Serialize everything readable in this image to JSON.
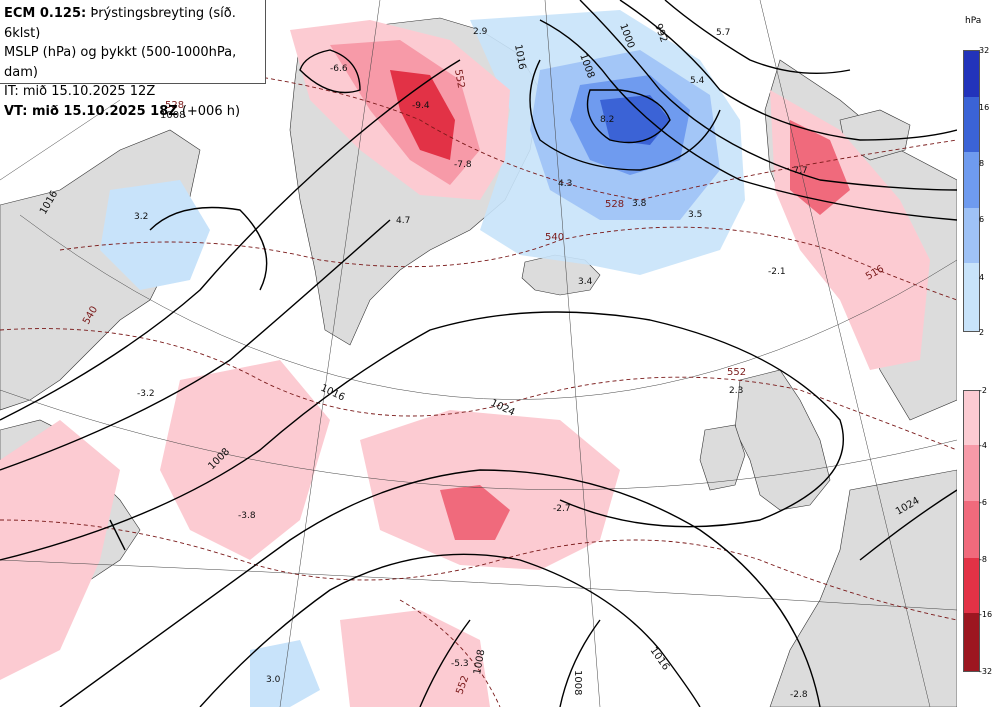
{
  "header": {
    "line1_bold": "ECM 0.125:",
    "line1_rest": " Þrýstingsbreyting (síð. 6klst)",
    "line2": "MSLP (hPa) og þykkt (500-1000hPa, dam)",
    "line3": "IT: mið 15.10.2025 12Z",
    "line4_bold": "VT: mið 15.10.2025 18Z",
    "line4_rest": " (+006 h)"
  },
  "legend": {
    "unit": "hPa",
    "positive": [
      {
        "label": "32",
        "color": "#2233bb"
      },
      {
        "label": "16",
        "color": "#3b63d6"
      },
      {
        "label": "8",
        "color": "#6f9bef"
      },
      {
        "label": "6",
        "color": "#9fc2f6"
      },
      {
        "label": "4",
        "color": "#c8e3fa"
      },
      {
        "label": "2",
        "color": "#ffffff"
      }
    ],
    "negative": [
      {
        "label": "-2",
        "color": "#fccbd2"
      },
      {
        "label": "-4",
        "color": "#f79aa8"
      },
      {
        "label": "-6",
        "color": "#f06a7c"
      },
      {
        "label": "-8",
        "color": "#e23246"
      },
      {
        "label": "-16",
        "color": "#c8141f"
      },
      {
        "label": "-32",
        "color": "#9c1620"
      }
    ]
  },
  "isobar_labels": [
    "1008",
    "1016",
    "1024",
    "1008",
    "1016",
    "1024",
    "1016",
    "1008",
    "1000",
    "992",
    "1016",
    "1008",
    "1008"
  ],
  "thickness_labels": [
    "528",
    "540",
    "552",
    "528",
    "540",
    "552",
    "552",
    "516"
  ],
  "change_values": [
    "-6.6",
    "-9.4",
    "-7.8",
    "2.9",
    "5.7",
    "5.4",
    "8.2",
    "4.3",
    "3.8",
    "3.5",
    "-7.7",
    "3.2",
    "4.7",
    "3.4",
    "-3.2",
    "-2.1",
    "-3.8",
    "-2.7",
    "2.3",
    "-5.3",
    "3.0",
    "-2.8"
  ],
  "colors": {
    "land": "#dcdcdc",
    "sea": "#ffffff",
    "isobar": "#000000",
    "thickness": "#7a1a1a"
  }
}
